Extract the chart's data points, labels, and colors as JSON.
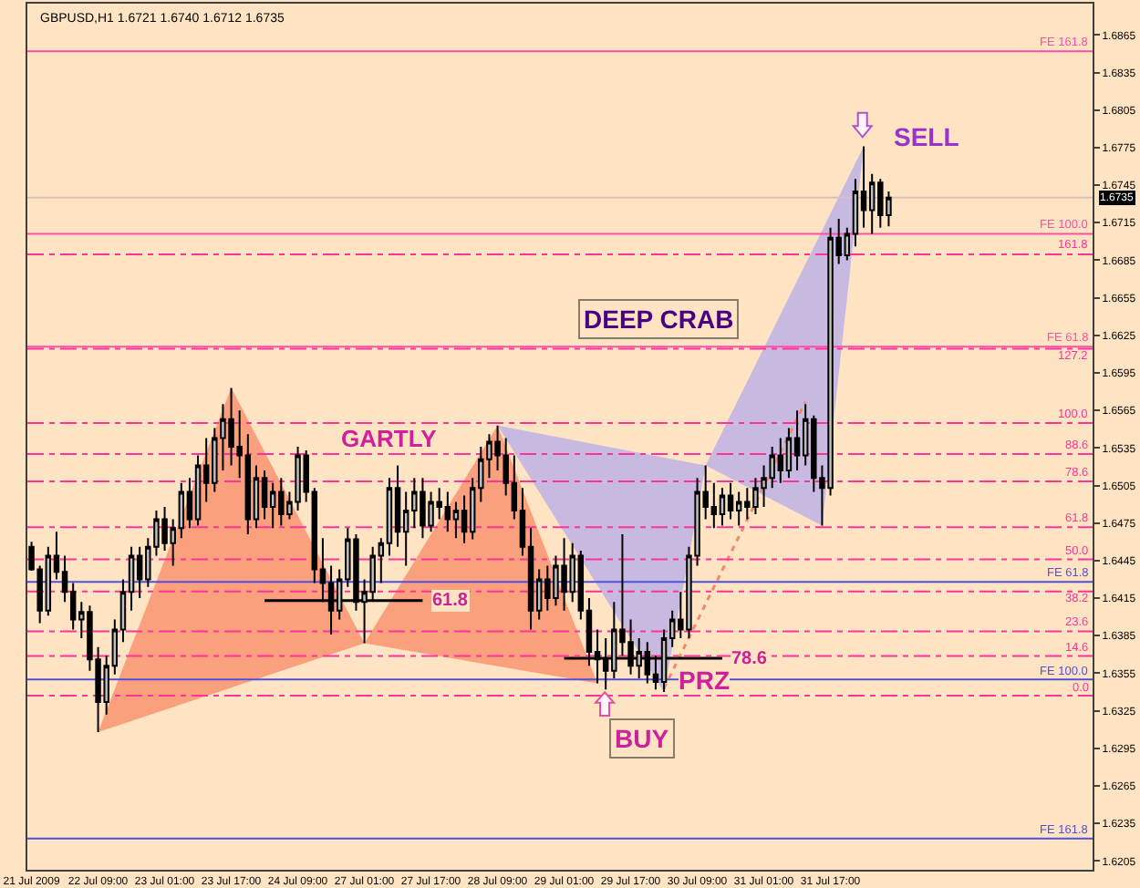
{
  "chart_data": {
    "type": "candlestick",
    "title": "GBPUSD,H1 1.6721 1.6740 1.6712 1.6735",
    "categories": [
      "21 Jul 2009",
      null,
      null,
      null,
      null,
      null,
      null,
      null,
      "22 Jul 09:00",
      null,
      null,
      null,
      null,
      null,
      null,
      null,
      "23 Jul 01:00",
      null,
      null,
      null,
      null,
      null,
      null,
      null,
      "23 Jul 17:00",
      null,
      null,
      null,
      null,
      null,
      null,
      null,
      "24 Jul 09:00",
      null,
      null,
      null,
      null,
      null,
      null,
      null,
      "27 Jul 01:00",
      null,
      null,
      null,
      null,
      null,
      null,
      null,
      "27 Jul 17:00",
      null,
      null,
      null,
      null,
      null,
      null,
      null,
      "28 Jul 09:00",
      null,
      null,
      null,
      null,
      null,
      null,
      null,
      "29 Jul 01:00",
      null,
      null,
      null,
      null,
      null,
      null,
      null,
      "29 Jul 17:00",
      null,
      null,
      null,
      null,
      null,
      null,
      null,
      "30 Jul 09:00",
      null,
      null,
      null,
      null,
      null,
      null,
      null,
      "31 Jul 01:00",
      null,
      null,
      null,
      null,
      null,
      null,
      null,
      "31 Jul 17:00",
      null,
      null,
      null,
      null,
      null,
      null,
      null,
      null,
      null,
      null,
      null,
      null,
      null,
      null,
      null,
      null,
      null,
      null,
      null,
      null,
      null,
      null,
      null,
      null,
      null,
      null,
      null,
      null,
      null,
      null,
      null
    ],
    "color": "#000000",
    "ohlc": [
      [
        1.6456,
        1.646,
        1.6437,
        1.6438
      ],
      [
        1.6438,
        1.6441,
        1.6395,
        1.6405
      ],
      [
        1.6405,
        1.6456,
        1.6401,
        1.6449
      ],
      [
        1.6449,
        1.6468,
        1.643,
        1.6436
      ],
      [
        1.6436,
        1.6449,
        1.6412,
        1.642
      ],
      [
        1.642,
        1.6427,
        1.639,
        1.6398
      ],
      [
        1.6398,
        1.6412,
        1.6383,
        1.6404
      ],
      [
        1.6404,
        1.6409,
        1.6357,
        1.6366
      ],
      [
        1.6366,
        1.6376,
        1.6308,
        1.6332
      ],
      [
        1.6332,
        1.6369,
        1.6322,
        1.6361
      ],
      [
        1.6361,
        1.6398,
        1.6354,
        1.639
      ],
      [
        1.639,
        1.643,
        1.638,
        1.642
      ],
      [
        1.642,
        1.6456,
        1.6405,
        1.6449
      ],
      [
        1.6449,
        1.6456,
        1.6415,
        1.643
      ],
      [
        1.643,
        1.6463,
        1.6424,
        1.6456
      ],
      [
        1.6456,
        1.6485,
        1.6449,
        1.6478
      ],
      [
        1.6478,
        1.6488,
        1.6453,
        1.6459
      ],
      [
        1.6459,
        1.6478,
        1.6441,
        1.6471
      ],
      [
        1.6471,
        1.6507,
        1.6463,
        1.65
      ],
      [
        1.65,
        1.6511,
        1.6471,
        1.6478
      ],
      [
        1.6478,
        1.6529,
        1.6473,
        1.6521
      ],
      [
        1.6521,
        1.6543,
        1.6492,
        1.6507
      ],
      [
        1.6507,
        1.6551,
        1.65,
        1.6543
      ],
      [
        1.6543,
        1.657,
        1.6517,
        1.6558
      ],
      [
        1.6558,
        1.6583,
        1.6521,
        1.6536
      ],
      [
        1.6536,
        1.6565,
        1.6511,
        1.6529
      ],
      [
        1.6529,
        1.6546,
        1.6466,
        1.6478
      ],
      [
        1.6478,
        1.6521,
        1.6471,
        1.6511
      ],
      [
        1.6511,
        1.6517,
        1.6478,
        1.6488
      ],
      [
        1.6488,
        1.6507,
        1.6471,
        1.65
      ],
      [
        1.65,
        1.6511,
        1.6473,
        1.6482
      ],
      [
        1.6482,
        1.65,
        1.6478,
        1.6492
      ],
      [
        1.6492,
        1.6536,
        1.6485,
        1.6529
      ],
      [
        1.6529,
        1.6533,
        1.6492,
        1.65
      ],
      [
        1.65,
        1.6503,
        1.6427,
        1.6438
      ],
      [
        1.6438,
        1.6463,
        1.6412,
        1.6427
      ],
      [
        1.6427,
        1.6441,
        1.6386,
        1.6405
      ],
      [
        1.6405,
        1.6438,
        1.6398,
        1.643
      ],
      [
        1.643,
        1.6471,
        1.6424,
        1.6462
      ],
      [
        1.6462,
        1.6466,
        1.6405,
        1.6412
      ],
      [
        1.6412,
        1.643,
        1.6379,
        1.642
      ],
      [
        1.642,
        1.6456,
        1.6412,
        1.6449
      ],
      [
        1.6449,
        1.6463,
        1.6427,
        1.6459
      ],
      [
        1.6459,
        1.6511,
        1.6449,
        1.6503
      ],
      [
        1.6503,
        1.6521,
        1.6456,
        1.6468
      ],
      [
        1.6468,
        1.65,
        1.6441,
        1.6485
      ],
      [
        1.6485,
        1.6511,
        1.6471,
        1.65
      ],
      [
        1.65,
        1.6511,
        1.6463,
        1.6473
      ],
      [
        1.6473,
        1.65,
        1.6468,
        1.6492
      ],
      [
        1.6492,
        1.6503,
        1.6478,
        1.6488
      ],
      [
        1.6488,
        1.65,
        1.6468,
        1.6478
      ],
      [
        1.6478,
        1.6492,
        1.6463,
        1.6485
      ],
      [
        1.6485,
        1.6497,
        1.6459,
        1.6468
      ],
      [
        1.6468,
        1.6511,
        1.6462,
        1.6503
      ],
      [
        1.6503,
        1.6536,
        1.6492,
        1.6526
      ],
      [
        1.6526,
        1.6546,
        1.6511,
        1.654
      ],
      [
        1.654,
        1.6553,
        1.6517,
        1.6529
      ],
      [
        1.6529,
        1.6543,
        1.6497,
        1.6507
      ],
      [
        1.6507,
        1.6529,
        1.6478,
        1.6485
      ],
      [
        1.6485,
        1.6503,
        1.6449,
        1.6456
      ],
      [
        1.6456,
        1.6471,
        1.639,
        1.6405
      ],
      [
        1.6405,
        1.6438,
        1.6398,
        1.643
      ],
      [
        1.643,
        1.6441,
        1.6405,
        1.6415
      ],
      [
        1.6415,
        1.6449,
        1.6409,
        1.6441
      ],
      [
        1.6441,
        1.6463,
        1.6405,
        1.642
      ],
      [
        1.642,
        1.6459,
        1.6412,
        1.6449
      ],
      [
        1.6449,
        1.6453,
        1.6398,
        1.6405
      ],
      [
        1.6405,
        1.6415,
        1.6361,
        1.6372
      ],
      [
        1.6372,
        1.639,
        1.6347,
        1.6366
      ],
      [
        1.6366,
        1.6383,
        1.6342,
        1.6357
      ],
      [
        1.6357,
        1.6412,
        1.6351,
        1.639
      ],
      [
        1.639,
        1.6466,
        1.6369,
        1.638
      ],
      [
        1.638,
        1.6398,
        1.6354,
        1.6361
      ],
      [
        1.6361,
        1.6383,
        1.6351,
        1.6372
      ],
      [
        1.6372,
        1.638,
        1.6347,
        1.6354
      ],
      [
        1.6354,
        1.6369,
        1.6342,
        1.6348
      ],
      [
        1.6348,
        1.639,
        1.634,
        1.6383
      ],
      [
        1.6383,
        1.6405,
        1.6376,
        1.6398
      ],
      [
        1.6398,
        1.642,
        1.6383,
        1.639
      ],
      [
        1.639,
        1.6456,
        1.6383,
        1.6449
      ],
      [
        1.6449,
        1.6511,
        1.6441,
        1.65
      ],
      [
        1.65,
        1.6521,
        1.6478,
        1.6488
      ],
      [
        1.6488,
        1.6507,
        1.6471,
        1.6482
      ],
      [
        1.6482,
        1.6503,
        1.6473,
        1.6497
      ],
      [
        1.6497,
        1.6507,
        1.6478,
        1.6485
      ],
      [
        1.6485,
        1.65,
        1.6473,
        1.6492
      ],
      [
        1.6492,
        1.6503,
        1.6478,
        1.6488
      ],
      [
        1.6488,
        1.6511,
        1.6482,
        1.6503
      ],
      [
        1.6503,
        1.6521,
        1.6488,
        1.6511
      ],
      [
        1.6511,
        1.6536,
        1.6503,
        1.6529
      ],
      [
        1.6529,
        1.6543,
        1.6507,
        1.6517
      ],
      [
        1.6517,
        1.6551,
        1.6511,
        1.6543
      ],
      [
        1.6543,
        1.6565,
        1.6517,
        1.6529
      ],
      [
        1.6529,
        1.657,
        1.6521,
        1.6558
      ],
      [
        1.6558,
        1.6561,
        1.65,
        1.6511
      ],
      [
        1.6511,
        1.6521,
        1.6473,
        1.6503
      ],
      [
        1.6503,
        1.6711,
        1.6497,
        1.6703
      ],
      [
        1.6703,
        1.6718,
        1.6682,
        1.6689
      ],
      [
        1.6689,
        1.6711,
        1.6685,
        1.6706
      ],
      [
        1.6706,
        1.675,
        1.6696,
        1.674
      ],
      [
        1.674,
        1.6776,
        1.6711,
        1.6725
      ],
      [
        1.6725,
        1.6754,
        1.6706,
        1.6747
      ],
      [
        1.6747,
        1.675,
        1.6711,
        1.6721
      ],
      [
        1.6721,
        1.674,
        1.6712,
        1.6735
      ],
      null,
      null,
      null,
      null,
      null,
      null,
      null,
      null,
      null,
      null,
      null,
      null,
      null,
      null,
      null,
      null,
      null,
      null,
      null,
      null,
      null,
      null,
      null,
      null
    ],
    "colors": [
      "#000000",
      "#000000",
      "#c0c0c0",
      "#000000",
      "#000000",
      "#000000",
      "#c0c0c0",
      "#000000",
      "#000000",
      "#c0c0c0",
      "#c0c0c0",
      "#c0c0c0",
      "#c0c0c0",
      "#000000",
      "#c0c0c0",
      "#c0c0c0",
      "#000000",
      "#c0c0c0",
      "#c0c0c0",
      "#000000",
      "#c0c0c0",
      "#000000",
      "#c0c0c0",
      "#c0c0c0",
      "#000000",
      "#000000",
      "#000000",
      "#c0c0c0",
      "#000000",
      "#c0c0c0",
      "#000000",
      "#c0c0c0",
      "#c0c0c0",
      "#000000",
      "#000000",
      "#000000",
      "#000000",
      "#c0c0c0",
      "#c0c0c0",
      "#000000",
      "#c0c0c0",
      "#c0c0c0",
      "#c0c0c0",
      "#c0c0c0",
      "#000000",
      "#c0c0c0",
      "#c0c0c0",
      "#000000",
      "#c0c0c0",
      "#000000",
      "#000000",
      "#c0c0c0",
      "#000000",
      "#c0c0c0",
      "#c0c0c0",
      "#c0c0c0",
      "#000000",
      "#000000",
      "#000000",
      "#000000",
      "#000000",
      "#c0c0c0",
      "#000000",
      "#c0c0c0",
      "#000000",
      "#c0c0c0",
      "#000000",
      "#000000",
      "#000000",
      "#000000",
      "#c0c0c0",
      "#000000",
      "#000000",
      "#c0c0c0",
      "#000000",
      "#000000",
      "#c0c0c0",
      "#c0c0c0",
      "#000000",
      "#c0c0c0",
      "#c0c0c0",
      "#000000",
      "#000000",
      "#c0c0c0",
      "#000000",
      "#c0c0c0",
      "#000000",
      "#c0c0c0",
      "#c0c0c0",
      "#c0c0c0",
      "#000000",
      "#c0c0c0",
      "#000000",
      "#c0c0c0",
      "#000000",
      "#000000",
      "#c0c0c0",
      "#000000",
      "#c0c0c0",
      "#c0c0c0",
      "#000000",
      "#c0c0c0",
      "#000000",
      "#c0c0c0",
      null,
      null,
      null,
      null,
      null,
      null,
      null,
      null,
      null,
      null,
      null,
      null,
      null,
      null,
      null,
      null,
      null,
      null,
      null,
      null,
      null,
      null,
      null,
      null
    ],
    "series": [
      {
        "type": "area",
        "color": "#faa07d",
        "values": [
          null,
          null,
          null,
          null,
          null,
          null,
          null,
          null,
          1.6308,
          null,
          null,
          null,
          null,
          null,
          null,
          null,
          null,
          null,
          null,
          null,
          null,
          null,
          null,
          null,
          1.6583,
          null,
          null,
          null,
          null,
          null,
          null,
          null,
          null,
          null,
          null,
          null,
          null,
          null,
          null,
          null,
          1.6379,
          null,
          null,
          null,
          null,
          null,
          null,
          null,
          null,
          null,
          null,
          null,
          null,
          null,
          null,
          null,
          null,
          null,
          null,
          null,
          null,
          null,
          null,
          null,
          null,
          null,
          null,
          null,
          null,
          null,
          null,
          null,
          null,
          null,
          null,
          null,
          null,
          null,
          null,
          null,
          null,
          null,
          null,
          null,
          null,
          null,
          null,
          null,
          null,
          null,
          null,
          null,
          null,
          null,
          null,
          null,
          null,
          null,
          null,
          null,
          null,
          null,
          null,
          null,
          null,
          null,
          null,
          null,
          null,
          null,
          null,
          null,
          null,
          null,
          null,
          null,
          null,
          null,
          null,
          null,
          null,
          null,
          null,
          null,
          null,
          null,
          null,
          null
        ]
      },
      {
        "type": "area",
        "color": "#faa07d",
        "values": [
          null,
          null,
          null,
          null,
          null,
          null,
          null,
          null,
          null,
          null,
          null,
          null,
          null,
          null,
          null,
          null,
          null,
          null,
          null,
          null,
          null,
          null,
          null,
          null,
          null,
          null,
          null,
          null,
          null,
          null,
          null,
          null,
          null,
          null,
          null,
          null,
          null,
          null,
          null,
          null,
          1.6379,
          null,
          null,
          null,
          null,
          null,
          null,
          null,
          null,
          null,
          null,
          null,
          null,
          null,
          null,
          null,
          1.6553,
          null,
          null,
          null,
          null,
          null,
          null,
          null,
          null,
          null,
          null,
          null,
          1.6347,
          null,
          null,
          null,
          null,
          null,
          null,
          null,
          null,
          null,
          null,
          null,
          null,
          null,
          null,
          null,
          null,
          null,
          null,
          null,
          null,
          null,
          null,
          null,
          null,
          null,
          null,
          null,
          null,
          null,
          null,
          null,
          null,
          null,
          null,
          null,
          null,
          null,
          null,
          null,
          null,
          null,
          null,
          null,
          null,
          null,
          null,
          null,
          null,
          null,
          null,
          null,
          null,
          null,
          null,
          null,
          null,
          null,
          null,
          null
        ]
      },
      {
        "type": "area",
        "color": "#c8b9e1",
        "values": [
          null,
          null,
          null,
          null,
          null,
          null,
          null,
          null,
          null,
          null,
          null,
          null,
          null,
          null,
          null,
          null,
          null,
          null,
          null,
          null,
          null,
          null,
          null,
          null,
          null,
          null,
          null,
          null,
          null,
          null,
          null,
          null,
          null,
          null,
          null,
          null,
          null,
          null,
          null,
          null,
          null,
          null,
          null,
          null,
          null,
          null,
          null,
          null,
          null,
          null,
          null,
          null,
          null,
          null,
          null,
          null,
          1.6553,
          null,
          null,
          null,
          null,
          null,
          null,
          null,
          null,
          null,
          null,
          null,
          null,
          null,
          null,
          null,
          null,
          null,
          null,
          null,
          1.634,
          null,
          null,
          null,
          null,
          1.6521,
          null,
          null,
          null,
          null,
          null,
          null,
          null,
          null,
          null,
          null,
          null,
          null,
          null,
          null,
          null,
          null,
          null,
          null,
          null,
          null,
          null,
          null,
          null,
          null,
          null,
          null,
          null,
          null,
          null,
          null,
          null,
          null,
          null,
          null,
          null,
          null,
          null,
          null,
          null,
          null,
          null,
          null,
          null,
          null,
          null,
          null
        ]
      },
      {
        "type": "area",
        "color": "#c8b9e1",
        "values": [
          null,
          null,
          null,
          null,
          null,
          null,
          null,
          null,
          null,
          null,
          null,
          null,
          null,
          null,
          null,
          null,
          null,
          null,
          null,
          null,
          null,
          null,
          null,
          null,
          null,
          null,
          null,
          null,
          null,
          null,
          null,
          null,
          null,
          null,
          null,
          null,
          null,
          null,
          null,
          null,
          null,
          null,
          null,
          null,
          null,
          null,
          null,
          null,
          null,
          null,
          null,
          null,
          null,
          null,
          null,
          null,
          null,
          null,
          null,
          null,
          null,
          null,
          null,
          null,
          null,
          null,
          null,
          null,
          null,
          null,
          null,
          null,
          null,
          null,
          null,
          null,
          null,
          null,
          null,
          null,
          null,
          1.6521,
          null,
          null,
          null,
          null,
          null,
          null,
          null,
          null,
          null,
          null,
          null,
          null,
          null,
          1.6473,
          null,
          null,
          null,
          null,
          1.6776,
          null,
          null,
          null,
          null,
          null,
          null,
          null,
          null,
          null,
          null,
          null,
          null,
          null,
          null,
          null,
          null,
          null,
          null,
          null,
          null,
          null,
          null,
          null,
          null,
          null,
          null,
          null
        ]
      },
      {
        "type": "line",
        "color": "#f08a6a",
        "line_style": "dotted",
        "values": [
          null,
          null,
          null,
          null,
          null,
          null,
          null,
          null,
          null,
          null,
          null,
          null,
          null,
          null,
          null,
          null,
          null,
          null,
          null,
          null,
          null,
          null,
          null,
          null,
          null,
          null,
          null,
          null,
          null,
          null,
          null,
          null,
          null,
          null,
          null,
          null,
          null,
          null,
          null,
          null,
          null,
          null,
          null,
          null,
          null,
          null,
          null,
          null,
          null,
          null,
          null,
          null,
          null,
          null,
          null,
          null,
          null,
          null,
          null,
          null,
          null,
          null,
          null,
          null,
          null,
          null,
          null,
          null,
          null,
          null,
          null,
          null,
          null,
          null,
          null,
          null,
          1.6343,
          null,
          null,
          null,
          null,
          null,
          null,
          null,
          null,
          null,
          null,
          null,
          null,
          null,
          null,
          null,
          null,
          1.6572,
          null,
          null,
          null,
          null,
          null,
          null,
          null,
          null,
          null,
          null,
          null,
          null,
          null,
          null,
          null,
          null,
          null,
          null,
          null,
          null,
          null,
          null,
          null,
          null,
          null,
          null,
          null,
          null,
          null,
          null,
          null,
          null,
          null,
          null
        ]
      },
      {
        "type": "line",
        "name": "61.8",
        "color": "#000000",
        "values": [
          null,
          null,
          null,
          null,
          null,
          null,
          null,
          null,
          null,
          null,
          null,
          null,
          null,
          null,
          null,
          null,
          null,
          null,
          null,
          null,
          null,
          null,
          null,
          null,
          null,
          null,
          null,
          null,
          1.6413,
          1.6413,
          1.6413,
          1.6413,
          1.6413,
          1.6413,
          1.6413,
          1.6413,
          1.6413,
          1.6413,
          1.6413,
          1.6413,
          1.6413,
          1.6413,
          1.6413,
          1.6413,
          1.6413,
          1.6413,
          1.6413,
          1.6413,
          null,
          null,
          null,
          null,
          null,
          null,
          null,
          null,
          null,
          null,
          null,
          null,
          null,
          null,
          null,
          null,
          null,
          null,
          null,
          null,
          null,
          null,
          null,
          null,
          null,
          null,
          null,
          null,
          null,
          null,
          null,
          null,
          null,
          null,
          null,
          null,
          null,
          null,
          null,
          null,
          null,
          null,
          null,
          null,
          null,
          null,
          null,
          null,
          null,
          null,
          null,
          null,
          null,
          null,
          null,
          null,
          null,
          null,
          null,
          null,
          null,
          null,
          null,
          null,
          null,
          null,
          null,
          null,
          null,
          null,
          null,
          null,
          null,
          null,
          null,
          null,
          null,
          null,
          null,
          null
        ]
      },
      {
        "type": "line",
        "name": "78.6",
        "color": "#000000",
        "values": [
          null,
          null,
          null,
          null,
          null,
          null,
          null,
          null,
          null,
          null,
          null,
          null,
          null,
          null,
          null,
          null,
          null,
          null,
          null,
          null,
          null,
          null,
          null,
          null,
          null,
          null,
          null,
          null,
          null,
          null,
          null,
          null,
          null,
          null,
          null,
          null,
          null,
          null,
          null,
          null,
          null,
          null,
          null,
          null,
          null,
          null,
          null,
          null,
          null,
          null,
          null,
          null,
          null,
          null,
          null,
          null,
          null,
          null,
          null,
          null,
          null,
          null,
          null,
          null,
          1.6367,
          1.6367,
          1.6367,
          1.6367,
          1.6367,
          1.6367,
          1.6367,
          1.6367,
          1.6367,
          1.6367,
          1.6367,
          1.6367,
          1.6367,
          1.6367,
          1.6367,
          1.6367,
          1.6367,
          1.6367,
          1.6367,
          1.6367,
          null,
          null,
          null,
          null,
          null,
          null,
          null,
          null,
          null,
          null,
          null,
          null,
          null,
          null,
          null,
          null,
          null,
          null,
          null,
          null,
          null,
          null,
          null,
          null,
          null,
          null,
          null,
          null,
          null,
          null,
          null,
          null,
          null,
          null,
          null,
          null,
          null,
          null,
          null,
          null,
          null,
          null,
          null,
          null
        ]
      }
    ],
    "ylim": [
      1.6198,
      1.689
    ],
    "yticks": [
      1.6205,
      1.6235,
      1.6265,
      1.6295,
      1.6325,
      1.6355,
      1.6385,
      1.6415,
      1.6445,
      1.6475,
      1.6505,
      1.6535,
      1.6565,
      1.6595,
      1.6625,
      1.6655,
      1.6685,
      1.6715,
      1.6745,
      1.6775,
      1.6805,
      1.6835,
      1.6865
    ],
    "y2lim": [
      -63.8,
      253.7
    ],
    "ref_lines": [
      {
        "axis": "y",
        "value": 1.6735,
        "color": "#d9bfbf"
      },
      {
        "axis": "y",
        "value": 1.6852,
        "label": "FE 161.8",
        "color": "#ff4fa7"
      },
      {
        "axis": "y",
        "value": 1.6706,
        "label": "FE 100.0",
        "color": "#ff4fa7"
      },
      {
        "axis": "y2",
        "value": 161.8,
        "label": "161.8",
        "color": "#ff3399",
        "line_style": "dashed"
      },
      {
        "axis": "y",
        "value": 1.6616,
        "label": "FE 61.8",
        "color": "#ff4fa7"
      },
      {
        "axis": "y2",
        "value": 127.2,
        "label": "127.2",
        "color": "#ff3399",
        "line_style": "dashed"
      },
      {
        "axis": "y2",
        "value": 100.0,
        "label": "100.0",
        "color": "#ff3399",
        "line_style": "dashed"
      },
      {
        "axis": "y2",
        "value": 88.6,
        "label": "88.6",
        "color": "#ff3399",
        "line_style": "dashed"
      },
      {
        "axis": "y2",
        "value": 78.6,
        "label": "78.6",
        "color": "#ff3399",
        "line_style": "dashed"
      },
      {
        "axis": "y2",
        "value": 61.8,
        "label": "61.8",
        "color": "#ff3399",
        "line_style": "dashed"
      },
      {
        "axis": "y2",
        "value": 50.0,
        "label": "50.0",
        "color": "#ff3399",
        "line_style": "dashed"
      },
      {
        "axis": "y",
        "value": 1.6428,
        "label": "FE 61.8",
        "color": "#5050dc"
      },
      {
        "axis": "y2",
        "value": 38.2,
        "label": "38.2",
        "color": "#ff3399",
        "line_style": "dashed"
      },
      {
        "axis": "y2",
        "value": 23.6,
        "label": "23.6",
        "color": "#ff3399",
        "line_style": "dashed"
      },
      {
        "axis": "y2",
        "value": 14.6,
        "label": "14.6",
        "color": "#ff3399",
        "line_style": "dashed"
      },
      {
        "axis": "y",
        "value": 1.635,
        "label": "FE 100.0",
        "color": "#5050dc"
      },
      {
        "axis": "y2",
        "value": 0.0,
        "label": "0.0",
        "color": "#ff3399",
        "line_style": "dashed"
      },
      {
        "axis": "y",
        "value": 1.6223,
        "label": "FE 161.8",
        "color": "#5050dc"
      }
    ],
    "annotations": [
      "GARTLY",
      "DEEP CRAB",
      "PRZ",
      "BUY",
      "SELL",
      "1.6735"
    ]
  }
}
